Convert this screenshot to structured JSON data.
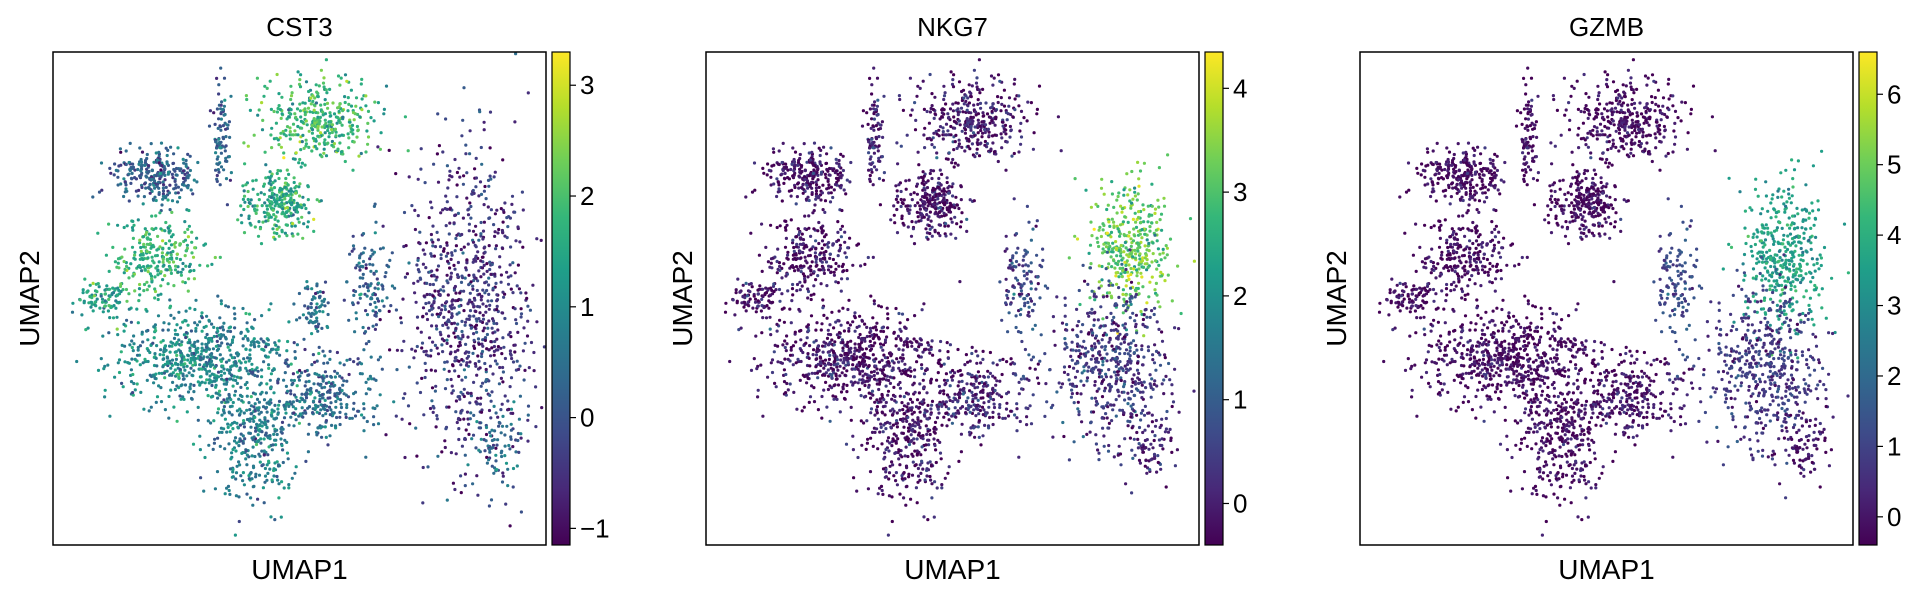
{
  "figure": {
    "colormap": "viridis",
    "colormap_stops": [
      "#440154",
      "#482878",
      "#3e4a89",
      "#31688e",
      "#26828e",
      "#1f9e89",
      "#35b779",
      "#6ece58",
      "#b5de2b",
      "#fde725"
    ]
  },
  "chart_data": [
    {
      "type": "scatter",
      "title": "CST3",
      "xlabel": "UMAP1",
      "ylabel": "UMAP2",
      "colorbar": {
        "range": [
          -1.15,
          3.3
        ],
        "ticks": [
          "−1",
          "0",
          "1",
          "2",
          "3"
        ],
        "tick_values": [
          -1,
          0,
          1,
          2,
          3
        ]
      },
      "clusters": [
        {
          "center": [
            0.21,
            0.25
          ],
          "spread": [
            0.045,
            0.03
          ],
          "n": 260,
          "value": 0.2
        },
        {
          "center": [
            0.34,
            0.17
          ],
          "spread": [
            0.01,
            0.05
          ],
          "n": 90,
          "value": 0.3
        },
        {
          "center": [
            0.54,
            0.14
          ],
          "spread": [
            0.06,
            0.045
          ],
          "n": 360,
          "value": 1.8
        },
        {
          "center": [
            0.46,
            0.31
          ],
          "spread": [
            0.035,
            0.035
          ],
          "n": 260,
          "value": 1.6
        },
        {
          "center": [
            0.21,
            0.42
          ],
          "spread": [
            0.045,
            0.04
          ],
          "n": 260,
          "value": 1.7
        },
        {
          "center": [
            0.1,
            0.5
          ],
          "spread": [
            0.03,
            0.015
          ],
          "n": 90,
          "value": 1.4
        },
        {
          "center": [
            0.3,
            0.62
          ],
          "spread": [
            0.09,
            0.05
          ],
          "n": 620,
          "value": 0.9
        },
        {
          "center": [
            0.41,
            0.77
          ],
          "spread": [
            0.045,
            0.07
          ],
          "n": 380,
          "value": 0.7
        },
        {
          "center": [
            0.56,
            0.7
          ],
          "spread": [
            0.05,
            0.04
          ],
          "n": 260,
          "value": 0.3
        },
        {
          "center": [
            0.84,
            0.52
          ],
          "spread": [
            0.065,
            0.16
          ],
          "n": 860,
          "value": -0.5
        },
        {
          "center": [
            0.64,
            0.48
          ],
          "spread": [
            0.02,
            0.06
          ],
          "n": 120,
          "value": 0.3
        },
        {
          "center": [
            0.9,
            0.79
          ],
          "spread": [
            0.03,
            0.04
          ],
          "n": 80,
          "value": 0.4
        },
        {
          "center": [
            0.53,
            0.52
          ],
          "spread": [
            0.015,
            0.03
          ],
          "n": 70,
          "value": 0.5
        }
      ]
    },
    {
      "type": "scatter",
      "title": "NKG7",
      "xlabel": "UMAP1",
      "ylabel": "UMAP2",
      "colorbar": {
        "range": [
          -0.4,
          4.35
        ],
        "ticks": [
          "0",
          "1",
          "2",
          "3",
          "4"
        ],
        "tick_values": [
          0,
          1,
          2,
          3,
          4
        ]
      },
      "clusters": [
        {
          "center": [
            0.21,
            0.25
          ],
          "spread": [
            0.045,
            0.03
          ],
          "n": 260,
          "value": -0.2
        },
        {
          "center": [
            0.34,
            0.17
          ],
          "spread": [
            0.01,
            0.05
          ],
          "n": 90,
          "value": 0.1
        },
        {
          "center": [
            0.54,
            0.14
          ],
          "spread": [
            0.06,
            0.045
          ],
          "n": 360,
          "value": -0.1
        },
        {
          "center": [
            0.46,
            0.31
          ],
          "spread": [
            0.035,
            0.035
          ],
          "n": 260,
          "value": -0.2
        },
        {
          "center": [
            0.21,
            0.42
          ],
          "spread": [
            0.045,
            0.04
          ],
          "n": 260,
          "value": -0.2
        },
        {
          "center": [
            0.1,
            0.5
          ],
          "spread": [
            0.03,
            0.015
          ],
          "n": 90,
          "value": -0.2
        },
        {
          "center": [
            0.3,
            0.62
          ],
          "spread": [
            0.09,
            0.05
          ],
          "n": 620,
          "value": -0.2
        },
        {
          "center": [
            0.41,
            0.77
          ],
          "spread": [
            0.045,
            0.07
          ],
          "n": 380,
          "value": -0.2
        },
        {
          "center": [
            0.56,
            0.7
          ],
          "spread": [
            0.05,
            0.04
          ],
          "n": 260,
          "value": 0.0
        },
        {
          "center": [
            0.86,
            0.4
          ],
          "spread": [
            0.04,
            0.07
          ],
          "n": 380,
          "value": 3.2
        },
        {
          "center": [
            0.82,
            0.63
          ],
          "spread": [
            0.06,
            0.08
          ],
          "n": 520,
          "value": 0.4
        },
        {
          "center": [
            0.64,
            0.48
          ],
          "spread": [
            0.02,
            0.06
          ],
          "n": 120,
          "value": 0.6
        },
        {
          "center": [
            0.9,
            0.79
          ],
          "spread": [
            0.03,
            0.04
          ],
          "n": 80,
          "value": 0.0
        }
      ]
    },
    {
      "type": "scatter",
      "title": "GZMB",
      "xlabel": "UMAP1",
      "ylabel": "UMAP2",
      "colorbar": {
        "range": [
          -0.4,
          6.6
        ],
        "ticks": [
          "0",
          "1",
          "2",
          "3",
          "4",
          "5",
          "6"
        ],
        "tick_values": [
          0,
          1,
          2,
          3,
          4,
          5,
          6
        ]
      },
      "clusters": [
        {
          "center": [
            0.21,
            0.25
          ],
          "spread": [
            0.045,
            0.03
          ],
          "n": 260,
          "value": -0.2
        },
        {
          "center": [
            0.34,
            0.17
          ],
          "spread": [
            0.01,
            0.05
          ],
          "n": 90,
          "value": -0.1
        },
        {
          "center": [
            0.54,
            0.14
          ],
          "spread": [
            0.06,
            0.045
          ],
          "n": 360,
          "value": -0.2
        },
        {
          "center": [
            0.46,
            0.31
          ],
          "spread": [
            0.035,
            0.035
          ],
          "n": 260,
          "value": -0.2
        },
        {
          "center": [
            0.21,
            0.42
          ],
          "spread": [
            0.045,
            0.04
          ],
          "n": 260,
          "value": -0.2
        },
        {
          "center": [
            0.1,
            0.5
          ],
          "spread": [
            0.03,
            0.015
          ],
          "n": 90,
          "value": -0.2
        },
        {
          "center": [
            0.3,
            0.62
          ],
          "spread": [
            0.09,
            0.05
          ],
          "n": 620,
          "value": -0.2
        },
        {
          "center": [
            0.41,
            0.77
          ],
          "spread": [
            0.045,
            0.07
          ],
          "n": 380,
          "value": -0.2
        },
        {
          "center": [
            0.56,
            0.7
          ],
          "spread": [
            0.05,
            0.04
          ],
          "n": 260,
          "value": -0.1
        },
        {
          "center": [
            0.86,
            0.42
          ],
          "spread": [
            0.04,
            0.08
          ],
          "n": 400,
          "value": 3.6
        },
        {
          "center": [
            0.82,
            0.64
          ],
          "spread": [
            0.06,
            0.08
          ],
          "n": 500,
          "value": 0.8
        },
        {
          "center": [
            0.64,
            0.48
          ],
          "spread": [
            0.02,
            0.06
          ],
          "n": 120,
          "value": 1.2
        },
        {
          "center": [
            0.9,
            0.79
          ],
          "spread": [
            0.03,
            0.04
          ],
          "n": 80,
          "value": -0.1
        }
      ]
    }
  ]
}
